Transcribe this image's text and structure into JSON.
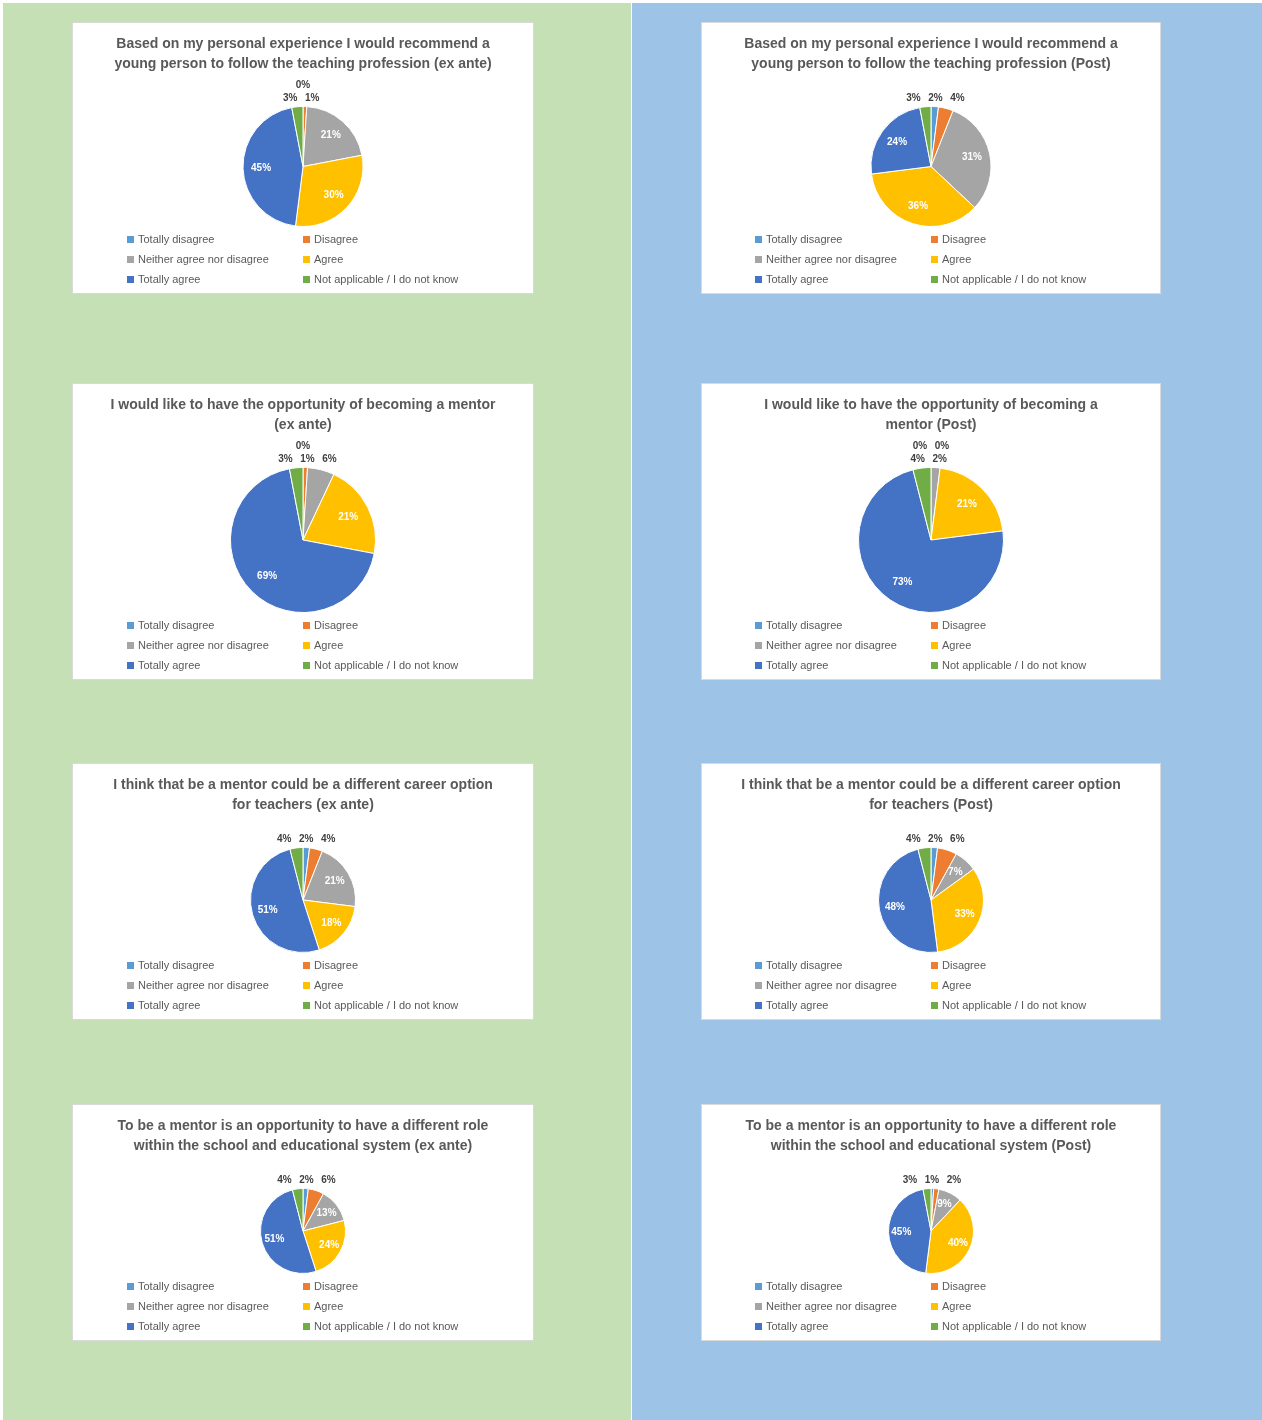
{
  "chart_data": [
    {
      "type": "pie",
      "title": "Based on my personal experience I would recommend a young person to follow the teaching profession (ex ante)",
      "categories": [
        "Totally disagree",
        "Disagree",
        "Neither agree nor disagree",
        "Agree",
        "Totally agree",
        "Not applicable / I do not know"
      ],
      "values": [
        0,
        1,
        21,
        30,
        45,
        3
      ],
      "value_labels": [
        "0%",
        "1%",
        "21%",
        "30%",
        "45%",
        "3%"
      ],
      "colors": [
        "#5b9bd5",
        "#ed7d31",
        "#a5a5a5",
        "#ffc000",
        "#4472c4",
        "#70ad47"
      ],
      "legend": "bottom"
    },
    {
      "type": "pie",
      "title": "Based on my personal experience I would recommend a young person to follow the teaching profession (Post)",
      "categories": [
        "Totally disagree",
        "Disagree",
        "Neither agree nor disagree",
        "Agree",
        "Totally agree",
        "Not applicable / I do not know"
      ],
      "values": [
        2,
        4,
        31,
        36,
        24,
        3
      ],
      "value_labels": [
        "2%",
        "4%",
        "31%",
        "36%",
        "24%",
        "3%"
      ],
      "colors": [
        "#5b9bd5",
        "#ed7d31",
        "#a5a5a5",
        "#ffc000",
        "#4472c4",
        "#70ad47"
      ],
      "legend": "bottom"
    },
    {
      "type": "pie",
      "title": "I would like to have the opportunity of becoming a mentor (ex ante)",
      "categories": [
        "Totally disagree",
        "Disagree",
        "Neither agree nor disagree",
        "Agree",
        "Totally agree",
        "Not applicable / I do not know"
      ],
      "values": [
        0,
        1,
        6,
        21,
        69,
        3
      ],
      "value_labels": [
        "0%",
        "1%",
        "6%",
        "21%",
        "69%",
        "3%"
      ],
      "colors": [
        "#5b9bd5",
        "#ed7d31",
        "#a5a5a5",
        "#ffc000",
        "#4472c4",
        "#70ad47"
      ],
      "legend": "bottom"
    },
    {
      "type": "pie",
      "title": "I would like to have the opportunity of becoming a mentor (Post)",
      "categories": [
        "Totally disagree",
        "Disagree",
        "Neither agree nor disagree",
        "Agree",
        "Totally agree",
        "Not applicable / I do not know"
      ],
      "values": [
        0,
        0,
        2,
        21,
        73,
        4
      ],
      "value_labels": [
        "0%",
        "0%",
        "2%",
        "21%",
        "73%",
        "4%"
      ],
      "colors": [
        "#5b9bd5",
        "#ed7d31",
        "#a5a5a5",
        "#ffc000",
        "#4472c4",
        "#70ad47"
      ],
      "legend": "bottom"
    },
    {
      "type": "pie",
      "title": "I think that be a mentor could be a different career option for teachers (ex ante)",
      "categories": [
        "Totally disagree",
        "Disagree",
        "Neither agree nor disagree",
        "Agree",
        "Totally agree",
        "Not applicable / I do not know"
      ],
      "values": [
        2,
        4,
        21,
        18,
        51,
        4
      ],
      "value_labels": [
        "2%",
        "4%",
        "21%",
        "18%",
        "51%",
        "4%"
      ],
      "colors": [
        "#5b9bd5",
        "#ed7d31",
        "#a5a5a5",
        "#ffc000",
        "#4472c4",
        "#70ad47"
      ],
      "legend": "bottom"
    },
    {
      "type": "pie",
      "title": "I think that be a mentor could be a different career option for teachers  (Post)",
      "categories": [
        "Totally disagree",
        "Disagree",
        "Neither agree nor disagree",
        "Agree",
        "Totally agree",
        "Not applicable / I do not know"
      ],
      "values": [
        2,
        6,
        7,
        33,
        48,
        4
      ],
      "value_labels": [
        "2%",
        "6%",
        "7%",
        "33%",
        "48%",
        "4%"
      ],
      "colors": [
        "#5b9bd5",
        "#ed7d31",
        "#a5a5a5",
        "#ffc000",
        "#4472c4",
        "#70ad47"
      ],
      "legend": "bottom"
    },
    {
      "type": "pie",
      "title": "To be a mentor is an opportunity to have a different role within the school and educational system (ex ante)",
      "categories": [
        "Totally disagree",
        "Disagree",
        "Neither agree nor disagree",
        "Agree",
        "Totally agree",
        "Not applicable / I do not know"
      ],
      "values": [
        2,
        6,
        13,
        24,
        51,
        4
      ],
      "value_labels": [
        "2%",
        "6%",
        "13%",
        "24%",
        "51%",
        "4%"
      ],
      "colors": [
        "#5b9bd5",
        "#ed7d31",
        "#a5a5a5",
        "#ffc000",
        "#4472c4",
        "#70ad47"
      ],
      "legend": "bottom"
    },
    {
      "type": "pie",
      "title": "To be a mentor is an opportunity to have a different role within the school and educational system  (Post)",
      "categories": [
        "Totally disagree",
        "Disagree",
        "Neither agree nor disagree",
        "Agree",
        "Totally agree",
        "Not applicable / I do not know"
      ],
      "values": [
        1,
        2,
        9,
        40,
        45,
        3
      ],
      "value_labels": [
        "1%",
        "2%",
        "9%",
        "40%",
        "45%",
        "3%"
      ],
      "colors": [
        "#5b9bd5",
        "#ed7d31",
        "#a5a5a5",
        "#ffc000",
        "#4472c4",
        "#70ad47"
      ],
      "legend": "bottom"
    }
  ]
}
